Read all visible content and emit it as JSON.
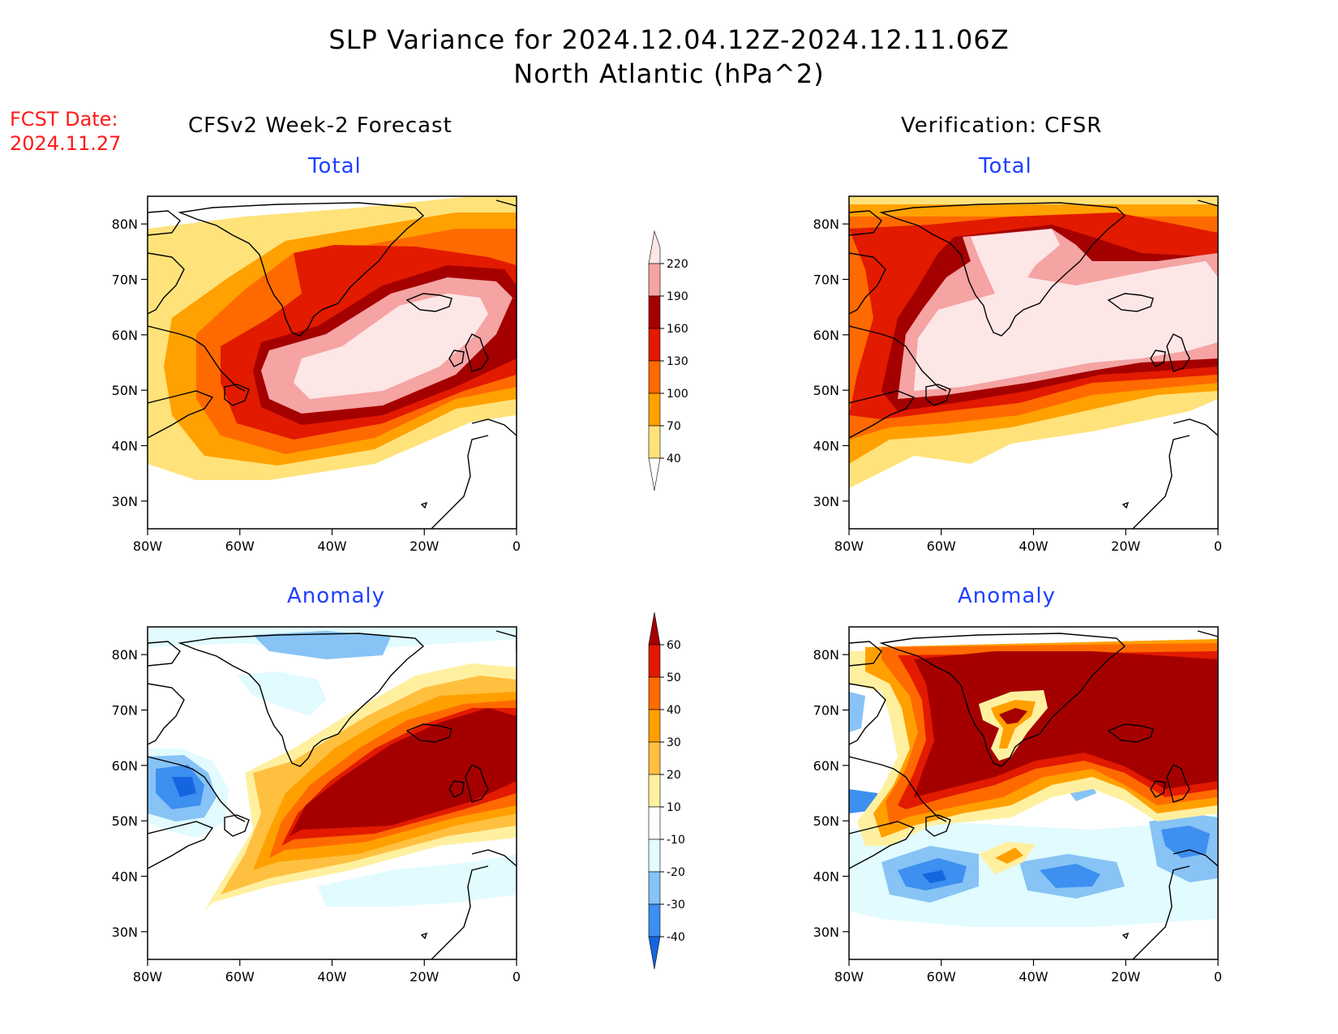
{
  "header": {
    "title_line1": "SLP Variance for 2024.12.04.12Z-2024.12.11.06Z",
    "title_line2": "North Atlantic (hPa^2)",
    "fcst_label": "FCST Date:",
    "fcst_date": "2024.11.27"
  },
  "columns": {
    "left": "CFSv2 Week-2 Forecast",
    "right": "Verification: CFSR"
  },
  "panels": {
    "top_left": "Total",
    "top_right": "Total",
    "bottom_left": "Anomaly",
    "bottom_right": "Anomaly"
  },
  "axes": {
    "lat_labels": [
      "30N",
      "40N",
      "50N",
      "60N",
      "70N",
      "80N"
    ],
    "lon_labels": [
      "80W",
      "60W",
      "40W",
      "20W",
      "0"
    ]
  },
  "colorbars": {
    "total": {
      "levels": [
        "40",
        "70",
        "100",
        "130",
        "160",
        "190",
        "220"
      ],
      "colors": [
        "#ffe27a",
        "#ffa100",
        "#ff6a00",
        "#e21a00",
        "#a50000",
        "#f5a3a3",
        "#fde6e6"
      ]
    },
    "anomaly": {
      "levels": [
        "-40",
        "-30",
        "-20",
        "-10",
        "10",
        "20",
        "30",
        "40",
        "50",
        "60"
      ],
      "colors": [
        "#1565e0",
        "#3d8ff0",
        "#87c3f5",
        "#e1fbff",
        "#ffffff",
        "#fff0a0",
        "#ffc040",
        "#ffa000",
        "#ff6a00",
        "#e21a00",
        "#a50000"
      ]
    }
  },
  "colors": {
    "fcst_date": "#ff1a1a",
    "panel_title": "#1f3fff"
  }
}
